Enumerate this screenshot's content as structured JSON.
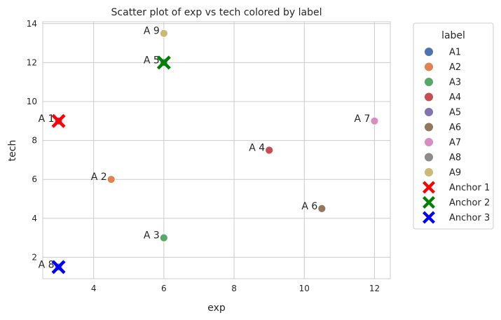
{
  "chart_data": {
    "type": "scatter",
    "title": "Scatter plot of exp vs tech colored by label",
    "xlabel": "exp",
    "ylabel": "tech",
    "xlim": [
      2.55,
      12.45
    ],
    "ylim": [
      0.9,
      14.1
    ],
    "xticks": [
      4,
      6,
      8,
      10,
      12
    ],
    "yticks": [
      2,
      4,
      6,
      8,
      10,
      12,
      14
    ],
    "grid": true,
    "legend_title": "label",
    "legend_position": "outside-right",
    "points": [
      {
        "label": "A 1",
        "category": "A1",
        "x": 3.0,
        "y": 9.0
      },
      {
        "label": "A 2",
        "category": "A2",
        "x": 4.5,
        "y": 6.0
      },
      {
        "label": "A 3",
        "category": "A3",
        "x": 6.0,
        "y": 3.0
      },
      {
        "label": "A 4",
        "category": "A4",
        "x": 9.0,
        "y": 7.5
      },
      {
        "label": "A 5",
        "category": "A5",
        "x": 6.0,
        "y": 12.0
      },
      {
        "label": "A 6",
        "category": "A6",
        "x": 10.5,
        "y": 4.5
      },
      {
        "label": "A 7",
        "category": "A7",
        "x": 12.0,
        "y": 9.0
      },
      {
        "label": "A 8",
        "category": "A8",
        "x": 3.0,
        "y": 1.5
      },
      {
        "label": "A 9",
        "category": "A9",
        "x": 6.0,
        "y": 13.5
      }
    ],
    "anchors": [
      {
        "name": "Anchor 1",
        "x": 3.0,
        "y": 9.0,
        "color": "#ff0000"
      },
      {
        "name": "Anchor 2",
        "x": 6.0,
        "y": 12.0,
        "color": "#008000"
      },
      {
        "name": "Anchor 3",
        "x": 3.0,
        "y": 1.5,
        "color": "#0000ff"
      }
    ],
    "categories": [
      {
        "name": "A1",
        "color": "#4c72b0"
      },
      {
        "name": "A2",
        "color": "#dd8452"
      },
      {
        "name": "A3",
        "color": "#55a868"
      },
      {
        "name": "A4",
        "color": "#c44e52"
      },
      {
        "name": "A5",
        "color": "#8172b3"
      },
      {
        "name": "A6",
        "color": "#937860"
      },
      {
        "name": "A7",
        "color": "#da8bc3"
      },
      {
        "name": "A8",
        "color": "#8c8c8c"
      },
      {
        "name": "A9",
        "color": "#ccb974"
      }
    ]
  }
}
